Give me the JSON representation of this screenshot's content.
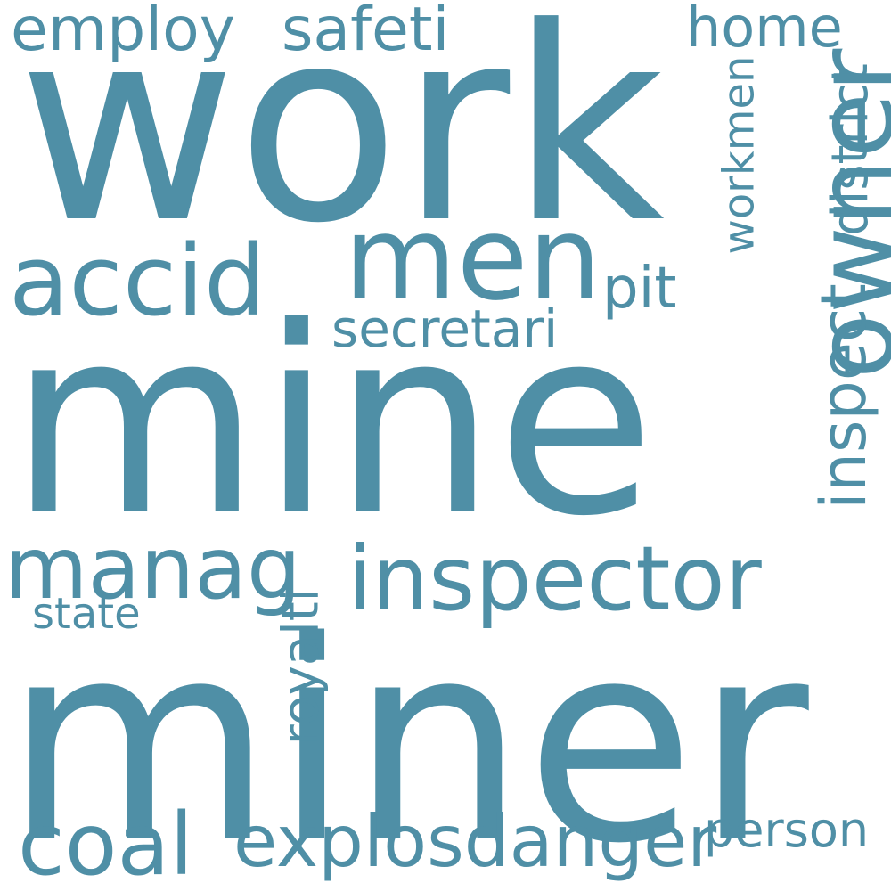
{
  "cloud": {
    "color": "#4f8fa6",
    "words": {
      "work": "work",
      "mine": "mine",
      "miner": "miner",
      "men": "men",
      "accid": "accid",
      "inspector": "inspector",
      "manag": "manag",
      "owner": "owner",
      "coal": "coal",
      "explosdanger": "explosdanger",
      "employ": "employ",
      "safeti": "safeti",
      "home": "home",
      "pit": "pit",
      "secretari": "secretari",
      "inspect": "inspect",
      "district": "district",
      "workmen": "workmen",
      "royalti": "royalti",
      "state": "state",
      "person": "person"
    }
  }
}
